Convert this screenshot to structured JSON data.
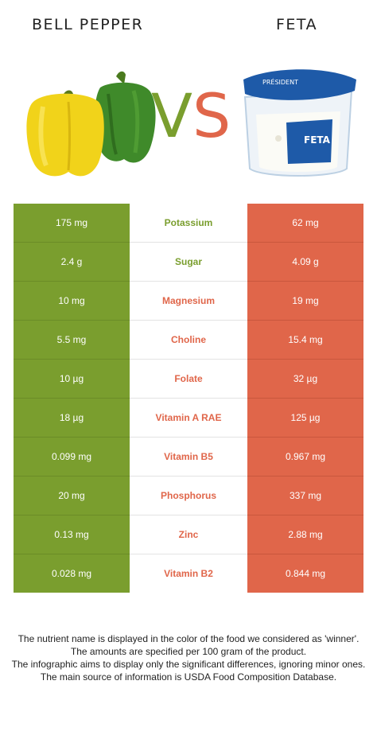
{
  "header": {
    "left_title": "BELL PEPPER",
    "right_title": "FETA",
    "vs_v": "V",
    "vs_s": "S"
  },
  "colors": {
    "left_winner": "#7a9e2e",
    "right_winner": "#e0664a"
  },
  "images": {
    "left": "bell-pepper-photo",
    "right": "feta-cheese-tub-photo",
    "right_label_brand": "PRÉSIDENT",
    "right_label_product": "FETA"
  },
  "nutrients": [
    {
      "name": "Potassium",
      "left": "175 mg",
      "right": "62 mg",
      "winner": "left"
    },
    {
      "name": "Sugar",
      "left": "2.4 g",
      "right": "4.09 g",
      "winner": "left"
    },
    {
      "name": "Magnesium",
      "left": "10 mg",
      "right": "19 mg",
      "winner": "right"
    },
    {
      "name": "Choline",
      "left": "5.5 mg",
      "right": "15.4 mg",
      "winner": "right"
    },
    {
      "name": "Folate",
      "left": "10 µg",
      "right": "32 µg",
      "winner": "right"
    },
    {
      "name": "Vitamin A RAE",
      "left": "18 µg",
      "right": "125 µg",
      "winner": "right"
    },
    {
      "name": "Vitamin B5",
      "left": "0.099 mg",
      "right": "0.967 mg",
      "winner": "right"
    },
    {
      "name": "Phosphorus",
      "left": "20 mg",
      "right": "337 mg",
      "winner": "right"
    },
    {
      "name": "Zinc",
      "left": "0.13 mg",
      "right": "2.88 mg",
      "winner": "right"
    },
    {
      "name": "Vitamin B2",
      "left": "0.028 mg",
      "right": "0.844 mg",
      "winner": "right"
    }
  ],
  "footnotes": [
    "The nutrient name is displayed in the color of the food we considered as 'winner'.",
    "The amounts are specified per 100 gram of the product.",
    "The infographic aims to display only the significant differences, ignoring minor ones.",
    "The main source of information is USDA Food Composition Database."
  ]
}
